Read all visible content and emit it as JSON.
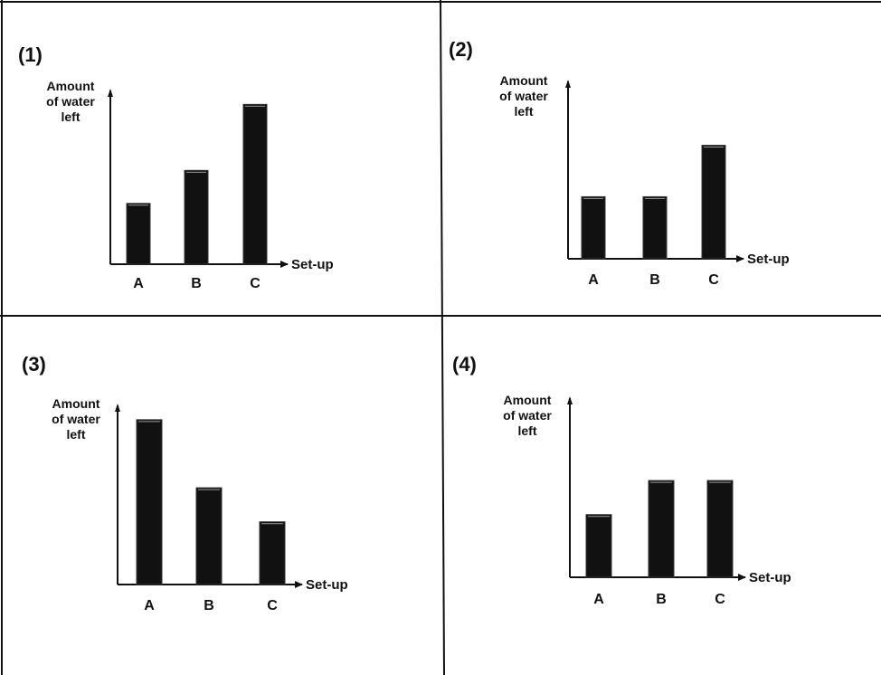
{
  "chart_data": [
    {
      "type": "bar",
      "panel_label": "(1)",
      "ylabel": "Amount of water left",
      "ylabel_lines": [
        "Amount",
        "of water",
        "left"
      ],
      "xlabel": "Set-up",
      "categories": [
        "A",
        "B",
        "C"
      ],
      "values": [
        3.5,
        5.4,
        9.2
      ],
      "ylim": [
        0,
        10
      ],
      "grid": false,
      "bar_color": "#111111"
    },
    {
      "type": "bar",
      "panel_label": "(2)",
      "ylabel": "Amount of water left",
      "ylabel_lines": [
        "Amount",
        "of water",
        "left"
      ],
      "xlabel": "Set-up",
      "categories": [
        "A",
        "B",
        "C"
      ],
      "values": [
        3.5,
        3.5,
        6.4
      ],
      "ylim": [
        0,
        10
      ],
      "grid": false,
      "bar_color": "#111111"
    },
    {
      "type": "bar",
      "panel_label": "(3)",
      "ylabel": "Amount of water left",
      "ylabel_lines": [
        "Amount",
        "of water",
        "left"
      ],
      "xlabel": "Set-up",
      "categories": [
        "A",
        "B",
        "C"
      ],
      "values": [
        9.2,
        5.4,
        3.5
      ],
      "ylim": [
        0,
        10
      ],
      "grid": false,
      "bar_color": "#111111"
    },
    {
      "type": "bar",
      "panel_label": "(4)",
      "ylabel": "Amount of water left",
      "ylabel_lines": [
        "Amount",
        "of water",
        "left"
      ],
      "xlabel": "Set-up",
      "categories": [
        "A",
        "B",
        "C"
      ],
      "values": [
        3.5,
        5.4,
        5.4
      ],
      "ylim": [
        0,
        10
      ],
      "grid": false,
      "bar_color": "#111111"
    }
  ]
}
